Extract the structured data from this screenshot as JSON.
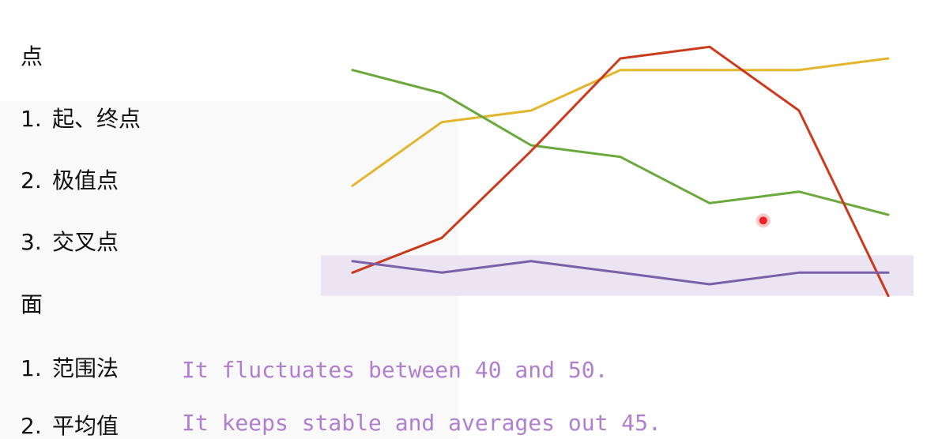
{
  "left_panel": {
    "points_heading": "点",
    "points_items": [
      {
        "num": "1.",
        "label": "起、终点"
      },
      {
        "num": "2.",
        "label": "极值点"
      },
      {
        "num": "3.",
        "label": "交叉点"
      }
    ],
    "surface_heading": "面",
    "surface_items": [
      {
        "num": "1.",
        "label": "范围法"
      },
      {
        "num": "2.",
        "label": "平均值"
      }
    ]
  },
  "notes": [
    "It fluctuates between 40 and 50.",
    "It keeps stable and averages out 45."
  ],
  "chart_data": {
    "type": "line",
    "x": [
      1,
      2,
      3,
      4,
      5,
      6,
      7
    ],
    "series": [
      {
        "color": "#e3b52a",
        "values": [
          60,
          71,
          73,
          80,
          80,
          80,
          82
        ]
      },
      {
        "color": "#6aa93c",
        "values": [
          80,
          76,
          67,
          65,
          57,
          59,
          55
        ]
      },
      {
        "color": "#cc3a1c",
        "values": [
          45,
          51,
          66,
          82,
          84,
          73,
          41
        ]
      },
      {
        "color": "#7a60a8",
        "values": [
          47,
          45,
          47,
          45,
          43,
          45,
          45
        ]
      }
    ],
    "highlight_band": {
      "range": [
        41,
        48
      ],
      "color": "#e8e1f2"
    },
    "marker": {
      "x": 5.6,
      "y": 54,
      "color": "#ee2222"
    },
    "ylim": [
      40,
      85
    ],
    "grid": false,
    "axes_visible": false
  }
}
